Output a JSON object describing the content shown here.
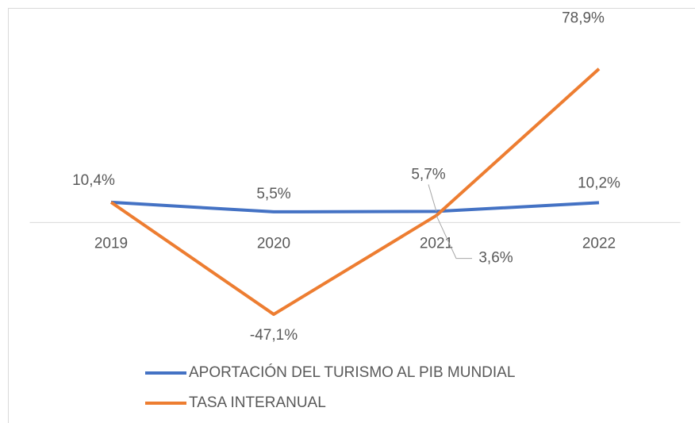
{
  "chart_data": {
    "type": "line",
    "categories": [
      "2019",
      "2020",
      "2021",
      "2022"
    ],
    "series": [
      {
        "name": "APORTACIÓN DEL TURISMO AL PIB MUNDIAL",
        "color": "#4472c4",
        "values": [
          10.4,
          5.5,
          5.7,
          10.2
        ],
        "value_labels": [
          "10,4%",
          "5,5%",
          "5,7%",
          "10,2%"
        ]
      },
      {
        "name": "TASA INTERANUAL",
        "color": "#ed7d31",
        "values": [
          10.4,
          -47.1,
          3.6,
          78.9
        ],
        "value_labels": [
          null,
          "-47,1%",
          "3,6%",
          "78,9%"
        ]
      }
    ],
    "ylim": [
      -65,
      102
    ]
  }
}
